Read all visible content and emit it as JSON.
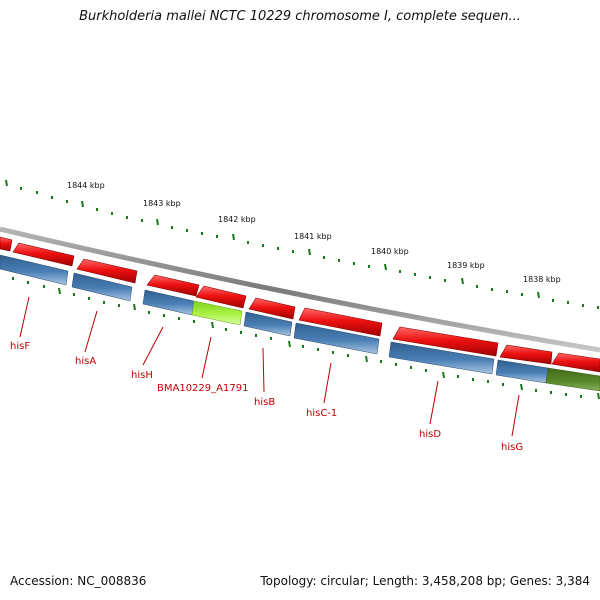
{
  "title": "Burkholderia mallei NCTC 10229 chromosome I, complete sequen...",
  "accession_label": "Accession: NC_008836",
  "summary_label": "Topology: circular; Length: 3,458,208 bp; Genes: 3,384",
  "colors": {
    "backbone": "#8a8a8a",
    "forward_gene": "#ee1111",
    "cds_bar": "#4a7fb5",
    "highlight_green": "#a8f040",
    "dark_green": "#5a8a2a",
    "ticks": "#1a7a1a",
    "gene_label": "#c00000"
  },
  "scale": {
    "labels": [
      "1844 kbp",
      "1843 kbp",
      "1842 kbp",
      "1841 kbp",
      "1840 kbp",
      "1839 kbp",
      "1838 kbp"
    ]
  },
  "gene_labels": [
    "hisF",
    "hisA",
    "hisH",
    "BMA10229_A1791",
    "hisB",
    "hisC-1",
    "hisD",
    "hisG"
  ]
}
